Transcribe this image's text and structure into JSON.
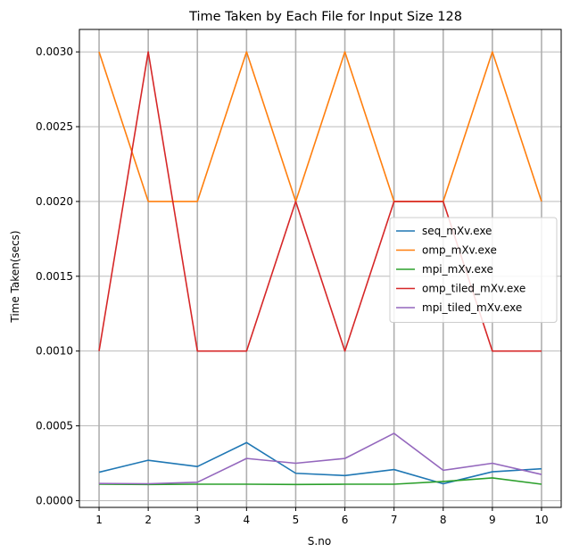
{
  "chart_data": {
    "type": "line",
    "title": "Time Taken by Each File for Input Size 128",
    "xlabel": "S.no",
    "ylabel": "Time Taken(secs)",
    "x": [
      1,
      2,
      3,
      4,
      5,
      6,
      7,
      8,
      9,
      10
    ],
    "xticks": [
      "1",
      "2",
      "3",
      "4",
      "5",
      "6",
      "7",
      "8",
      "9",
      "10"
    ],
    "yticks": [
      "0.0000",
      "0.0005",
      "0.0010",
      "0.0015",
      "0.0020",
      "0.0025",
      "0.0030"
    ],
    "ytick_values": [
      0,
      0.0005,
      0.001,
      0.0015,
      0.002,
      0.0025,
      0.003
    ],
    "xlim": [
      0.6,
      10.4
    ],
    "ylim": [
      -4.5e-05,
      0.00315
    ],
    "grid": true,
    "legend_position": "center-right",
    "series": [
      {
        "name": "seq_mXv.exe",
        "color": "#1f77b4",
        "values": [
          0.00019,
          0.00027,
          0.000228,
          0.000388,
          0.000183,
          0.000168,
          0.000208,
          0.000113,
          0.000193,
          0.000213
        ]
      },
      {
        "name": "omp_mXv.exe",
        "color": "#ff7f0e",
        "values": [
          0.003,
          0.002,
          0.002,
          0.003,
          0.002,
          0.003,
          0.002,
          0.002,
          0.003,
          0.002
        ]
      },
      {
        "name": "mpi_mXv.exe",
        "color": "#2ca02c",
        "values": [
          0.00011,
          0.000108,
          0.00011,
          0.00011,
          0.000108,
          0.00011,
          0.00011,
          0.000128,
          0.000152,
          0.00011
        ]
      },
      {
        "name": "omp_tiled_mXv.exe",
        "color": "#d62728",
        "values": [
          0.001,
          0.003,
          0.001,
          0.001,
          0.002,
          0.001,
          0.002,
          0.002,
          0.001,
          0.001
        ]
      },
      {
        "name": "mpi_tiled_mXv.exe",
        "color": "#9467bd",
        "values": [
          0.000115,
          0.000113,
          0.000123,
          0.000282,
          0.00025,
          0.000282,
          0.00045,
          0.000203,
          0.00025,
          0.000175
        ]
      }
    ]
  }
}
